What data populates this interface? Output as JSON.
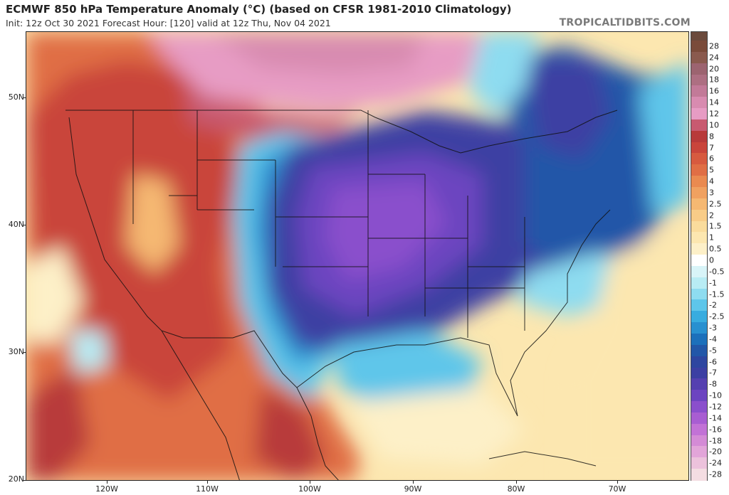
{
  "header": {
    "title": "ECMWF 850 hPa Temperature Anomaly (°C) (based on CFSR 1981-2010 Climatology)",
    "subtitle": "Init: 12z Oct 30 2021   Forecast Hour: [120]   valid at 12z Thu, Nov 04 2021",
    "brand": "TROPICALTIDBITS.COM"
  },
  "map": {
    "lat_labels": [
      "50N",
      "40N",
      "30N",
      "20N"
    ],
    "lon_labels": [
      "120W",
      "110W",
      "100W",
      "90W",
      "80W",
      "70W"
    ]
  },
  "colorbar": {
    "labels": [
      "28",
      "24",
      "20",
      "18",
      "16",
      "14",
      "12",
      "10",
      "8",
      "7",
      "6",
      "5",
      "4",
      "3",
      "2.5",
      "2",
      "1.5",
      "1",
      "0.5",
      "0",
      "-0.5",
      "-1",
      "-1.5",
      "-2",
      "-2.5",
      "-3",
      "-4",
      "-5",
      "-6",
      "-7",
      "-8",
      "-10",
      "-12",
      "-14",
      "-16",
      "-18",
      "-20",
      "-24",
      "-28"
    ],
    "colors": [
      "#7a4b3a",
      "#8a5a4e",
      "#9c6470",
      "#ad6f82",
      "#c27a98",
      "#d88bb0",
      "#e79cc4",
      "#c85a70",
      "#b83a3a",
      "#c9453b",
      "#d75a3f",
      "#e06e45",
      "#ea8a50",
      "#f0a160",
      "#f5b872",
      "#f8cc88",
      "#fadc9c",
      "#fce7b0",
      "#fdf0c8",
      "#ffffff",
      "#d8f4f8",
      "#b8ecf4",
      "#8edcf0",
      "#5ec6ea",
      "#38acdf",
      "#2890d0",
      "#1c70bb",
      "#2257a8",
      "#2e46a0",
      "#3c3fa3",
      "#5540b0",
      "#6c44c0",
      "#8a4fcc",
      "#a85dd2",
      "#c272d6",
      "#d48bd6",
      "#e2a5d9",
      "#ecc2dc",
      "#f4dde2"
    ]
  }
}
